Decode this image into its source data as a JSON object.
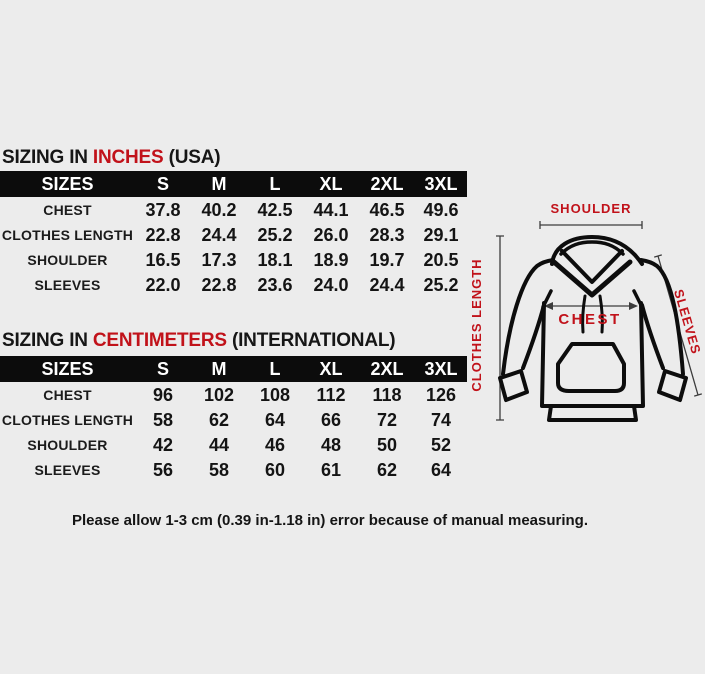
{
  "page": {
    "background": "#ececec"
  },
  "colors": {
    "accent_red": "#c1121a",
    "table_header_bg": "#0c0c0c",
    "table_header_text": "#ffffff",
    "body_text": "#161616"
  },
  "tables": [
    {
      "id": "inches",
      "title": {
        "prefix": "SIZING IN ",
        "unit": "INCHES",
        "suffix": " (USA)"
      },
      "header": [
        "SIZES",
        "S",
        "M",
        "L",
        "XL",
        "2XL",
        "3XL"
      ],
      "rows": [
        {
          "label": "CHEST",
          "values": [
            "37.8",
            "40.2",
            "42.5",
            "44.1",
            "46.5",
            "49.6"
          ]
        },
        {
          "label": "CLOTHES LENGTH",
          "values": [
            "22.8",
            "24.4",
            "25.2",
            "26.0",
            "28.3",
            "29.1"
          ]
        },
        {
          "label": "SHOULDER",
          "values": [
            "16.5",
            "17.3",
            "18.1",
            "18.9",
            "19.7",
            "20.5"
          ]
        },
        {
          "label": "SLEEVES",
          "values": [
            "22.0",
            "22.8",
            "23.6",
            "24.0",
            "24.4",
            "25.2"
          ]
        }
      ]
    },
    {
      "id": "centimeters",
      "title": {
        "prefix": "SIZING IN ",
        "unit": "CENTIMETERS",
        "suffix": " (INTERNATIONAL)"
      },
      "header": [
        "SIZES",
        "S",
        "M",
        "L",
        "XL",
        "2XL",
        "3XL"
      ],
      "rows": [
        {
          "label": "CHEST",
          "values": [
            "96",
            "102",
            "108",
            "112",
            "118",
            "126"
          ]
        },
        {
          "label": "CLOTHES LENGTH",
          "values": [
            "58",
            "62",
            "64",
            "66",
            "72",
            "74"
          ]
        },
        {
          "label": "SHOULDER",
          "values": [
            "42",
            "44",
            "46",
            "48",
            "50",
            "52"
          ]
        },
        {
          "label": "SLEEVES",
          "values": [
            "56",
            "58",
            "60",
            "61",
            "62",
            "64"
          ]
        }
      ]
    }
  ],
  "diagram": {
    "labels": {
      "shoulder": "SHOULDER",
      "clothes_length": "CLOTHES LENGTH",
      "chest": "CHEST",
      "sleeves": "SLEEVES"
    }
  },
  "footer": {
    "note": "Please allow 1-3 cm (0.39 in-1.18 in) error because of manual measuring."
  }
}
